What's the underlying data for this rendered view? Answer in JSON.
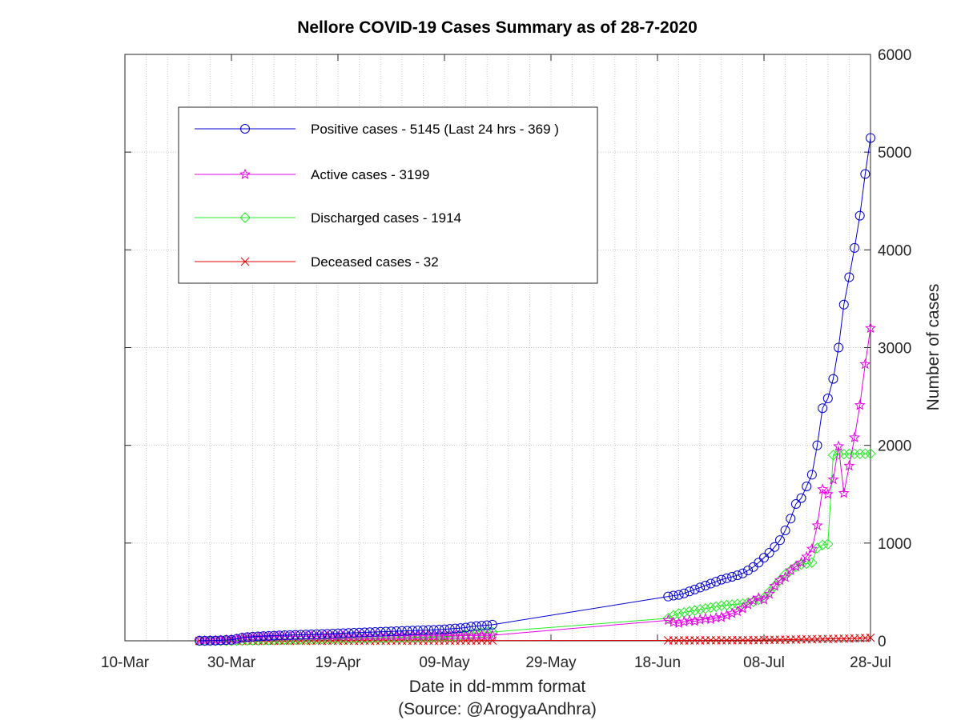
{
  "chart_data": {
    "type": "line",
    "title": "Nellore COVID-19 Cases Summary as of 28-7-2020",
    "xlabel": "Date in dd-mmm format",
    "xlabel2": "(Source: @ArogyaAndhra)",
    "ylabel": "Number of cases",
    "ylim": [
      0,
      6000
    ],
    "yticks": [
      0,
      1000,
      2000,
      3000,
      4000,
      5000,
      6000
    ],
    "xlim": [
      "2020-03-10",
      "2020-07-28"
    ],
    "xticks": [
      {
        "date": "2020-03-10",
        "label": "10-Mar"
      },
      {
        "date": "2020-03-30",
        "label": "30-Mar"
      },
      {
        "date": "2020-04-19",
        "label": "19-Apr"
      },
      {
        "date": "2020-05-09",
        "label": "09-May"
      },
      {
        "date": "2020-05-29",
        "label": "29-May"
      },
      {
        "date": "2020-06-18",
        "label": "18-Jun"
      },
      {
        "date": "2020-07-08",
        "label": "08-Jul"
      },
      {
        "date": "2020-07-28",
        "label": "28-Jul"
      }
    ],
    "grid": true,
    "legend_position": "top-left",
    "x": [
      "2020-03-24",
      "2020-03-25",
      "2020-03-26",
      "2020-03-27",
      "2020-03-28",
      "2020-03-29",
      "2020-03-30",
      "2020-03-31",
      "2020-04-01",
      "2020-04-02",
      "2020-04-03",
      "2020-04-04",
      "2020-04-05",
      "2020-04-06",
      "2020-04-07",
      "2020-04-08",
      "2020-04-09",
      "2020-04-10",
      "2020-04-11",
      "2020-04-12",
      "2020-04-13",
      "2020-04-14",
      "2020-04-15",
      "2020-04-16",
      "2020-04-17",
      "2020-04-18",
      "2020-04-19",
      "2020-04-20",
      "2020-04-21",
      "2020-04-22",
      "2020-04-23",
      "2020-04-24",
      "2020-04-25",
      "2020-04-26",
      "2020-04-27",
      "2020-04-28",
      "2020-04-29",
      "2020-04-30",
      "2020-05-01",
      "2020-05-02",
      "2020-05-03",
      "2020-05-04",
      "2020-05-05",
      "2020-05-06",
      "2020-05-07",
      "2020-05-08",
      "2020-05-09",
      "2020-05-10",
      "2020-05-11",
      "2020-05-12",
      "2020-05-13",
      "2020-05-14",
      "2020-05-15",
      "2020-05-16",
      "2020-05-17",
      "2020-05-18",
      "2020-06-20",
      "2020-06-21",
      "2020-06-22",
      "2020-06-23",
      "2020-06-24",
      "2020-06-25",
      "2020-06-26",
      "2020-06-27",
      "2020-06-28",
      "2020-06-29",
      "2020-06-30",
      "2020-07-01",
      "2020-07-02",
      "2020-07-03",
      "2020-07-04",
      "2020-07-05",
      "2020-07-06",
      "2020-07-07",
      "2020-07-08",
      "2020-07-09",
      "2020-07-10",
      "2020-07-11",
      "2020-07-12",
      "2020-07-13",
      "2020-07-14",
      "2020-07-15",
      "2020-07-16",
      "2020-07-17",
      "2020-07-18",
      "2020-07-19",
      "2020-07-20",
      "2020-07-21",
      "2020-07-22",
      "2020-07-23",
      "2020-07-24",
      "2020-07-25",
      "2020-07-26",
      "2020-07-27",
      "2020-07-28"
    ],
    "series": [
      {
        "name": "Positive cases - 5145 (Last 24 hrs - 369 )",
        "color": "#0000cd",
        "marker": "circle",
        "values": [
          1,
          1,
          2,
          3,
          5,
          8,
          10,
          20,
          32,
          38,
          42,
          45,
          48,
          50,
          52,
          55,
          57,
          58,
          60,
          62,
          64,
          66,
          68,
          70,
          72,
          74,
          76,
          78,
          80,
          82,
          84,
          86,
          88,
          90,
          92,
          94,
          96,
          98,
          100,
          102,
          104,
          106,
          108,
          110,
          112,
          115,
          118,
          122,
          126,
          130,
          135,
          145,
          150,
          155,
          160,
          165,
          453,
          462,
          470,
          485,
          505,
          525,
          545,
          565,
          585,
          605,
          625,
          640,
          655,
          670,
          690,
          720,
          755,
          800,
          850,
          900,
          960,
          1030,
          1130,
          1250,
          1400,
          1460,
          1580,
          1700,
          2000,
          2380,
          2480,
          2680,
          3000,
          3440,
          3720,
          4020,
          4350,
          4776,
          5145
        ]
      },
      {
        "name": "Active cases - 3199",
        "color": "#e600e6",
        "marker": "star",
        "values": [
          1,
          1,
          2,
          3,
          5,
          8,
          10,
          18,
          28,
          33,
          36,
          38,
          40,
          41,
          42,
          43,
          44,
          44,
          45,
          45,
          46,
          46,
          46,
          47,
          47,
          47,
          48,
          48,
          48,
          48,
          48,
          49,
          49,
          49,
          49,
          49,
          50,
          50,
          50,
          50,
          50,
          51,
          51,
          51,
          51,
          51,
          52,
          52,
          52,
          53,
          53,
          54,
          54,
          55,
          55,
          56,
          210,
          190,
          180,
          195,
          205,
          200,
          215,
          225,
          220,
          235,
          240,
          260,
          280,
          300,
          330,
          370,
          410,
          440,
          420,
          480,
          560,
          620,
          650,
          720,
          760,
          800,
          860,
          940,
          1180,
          1550,
          1500,
          1650,
          1990,
          1510,
          1790,
          2080,
          2410,
          2830,
          3199
        ]
      },
      {
        "name": "Discharged cases - 1914",
        "color": "#22ee22",
        "marker": "diamond",
        "values": [
          0,
          0,
          0,
          0,
          0,
          0,
          0,
          2,
          3,
          4,
          5,
          6,
          7,
          8,
          9,
          10,
          11,
          12,
          13,
          14,
          15,
          16,
          17,
          18,
          19,
          20,
          21,
          22,
          23,
          24,
          25,
          26,
          27,
          28,
          29,
          30,
          31,
          32,
          33,
          34,
          35,
          36,
          37,
          38,
          40,
          42,
          44,
          46,
          50,
          55,
          60,
          68,
          75,
          80,
          85,
          90,
          230,
          260,
          280,
          290,
          300,
          310,
          320,
          330,
          340,
          350,
          360,
          365,
          370,
          375,
          380,
          390,
          400,
          420,
          440,
          500,
          560,
          620,
          680,
          720,
          760,
          780,
          790,
          800,
          950,
          980,
          990,
          1900,
          1910,
          1910,
          1912,
          1912,
          1913,
          1914,
          1914
        ]
      },
      {
        "name": "Deceased cases - 32",
        "color": "#dd0000",
        "marker": "x",
        "values": [
          0,
          0,
          0,
          0,
          0,
          0,
          0,
          0,
          0,
          1,
          1,
          1,
          1,
          1,
          1,
          1,
          1,
          1,
          1,
          1,
          1,
          1,
          1,
          1,
          1,
          1,
          1,
          1,
          1,
          1,
          2,
          2,
          2,
          2,
          2,
          2,
          2,
          2,
          2,
          2,
          2,
          2,
          2,
          2,
          2,
          2,
          2,
          2,
          2,
          2,
          2,
          2,
          2,
          3,
          3,
          3,
          4,
          4,
          4,
          4,
          4,
          4,
          4,
          5,
          5,
          5,
          5,
          5,
          6,
          6,
          6,
          6,
          7,
          7,
          8,
          9,
          10,
          10,
          11,
          12,
          13,
          14,
          15,
          16,
          17,
          18,
          19,
          20,
          21,
          22,
          23,
          25,
          27,
          29,
          32
        ]
      }
    ]
  }
}
